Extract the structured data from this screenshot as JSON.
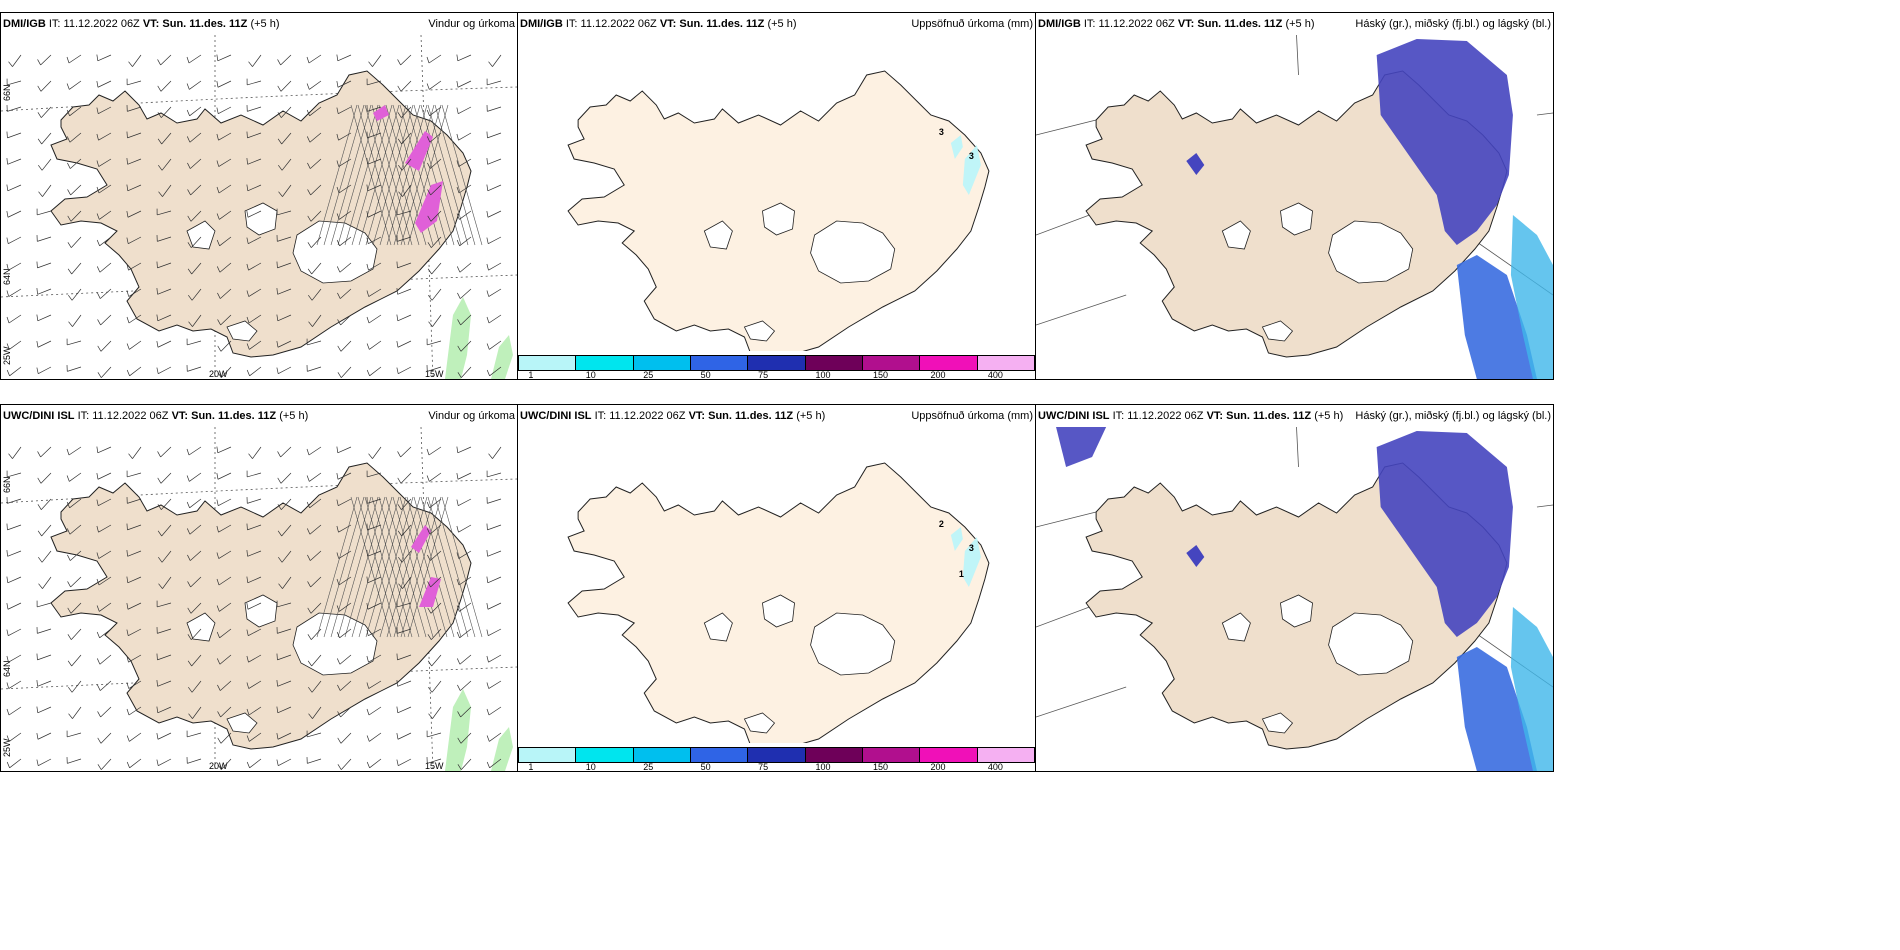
{
  "panels": [
    {
      "id": "p1",
      "model": "DMI/IGB",
      "it_label": "IT:",
      "it_value": "11.12.2022 06Z",
      "vt_label": "VT:",
      "vt_value": "Sun. 11.des. 11Z",
      "lead": "(+5 h)",
      "product": "Vindur og úrkoma",
      "type": "wind"
    },
    {
      "id": "p2",
      "model": "DMI/IGB",
      "it_label": "IT:",
      "it_value": "11.12.2022 06Z",
      "vt_label": "VT:",
      "vt_value": "Sun. 11.des. 11Z",
      "lead": "(+5 h)",
      "product": "Uppsöfnuð úrkoma (mm)",
      "type": "accum"
    },
    {
      "id": "p3",
      "model": "DMI/IGB",
      "it_label": "IT:",
      "it_value": "11.12.2022 06Z",
      "vt_label": "VT:",
      "vt_value": "Sun. 11.des. 11Z",
      "lead": "(+5 h)",
      "product": "Háský (gr.), miðský (fj.bl.) og lágský (bl.)",
      "type": "cloud"
    },
    {
      "id": "p4",
      "model": "UWC/DINI ISL",
      "it_label": "IT:",
      "it_value": "11.12.2022 06Z",
      "vt_label": "VT:",
      "vt_value": "Sun. 11.des. 11Z",
      "lead": "(+5 h)",
      "product": "Vindur og úrkoma",
      "type": "wind"
    },
    {
      "id": "p5",
      "model": "UWC/DINI ISL",
      "it_label": "IT:",
      "it_value": "11.12.2022 06Z",
      "vt_label": "VT:",
      "vt_value": "Sun. 11.des. 11Z",
      "lead": "(+5 h)",
      "product": "Uppsöfnuð úrkoma (mm)",
      "type": "accum"
    },
    {
      "id": "p6",
      "model": "UWC/DINI ISL",
      "it_label": "IT:",
      "it_value": "11.12.2022 06Z",
      "vt_label": "VT:",
      "vt_value": "Sun. 11.des. 11Z",
      "lead": "(+5 h)",
      "product": "Háský (gr.), miðský (fj.bl.) og lágský (bl.)",
      "type": "cloud"
    }
  ],
  "grid_labels": {
    "lat66": "66N",
    "lat64": "64N",
    "lon25": "25W",
    "lon20": "20W",
    "lon15": "15W"
  },
  "colorbar": {
    "colors": [
      "#b8f5f8",
      "#00e5ee",
      "#00bfee",
      "#2f64e6",
      "#1f2fb0",
      "#6e0059",
      "#b10f8e",
      "#f010b8",
      "#f5b0f2"
    ],
    "labels": [
      "1",
      "10",
      "25",
      "50",
      "75",
      "100",
      "150",
      "200",
      "400"
    ]
  },
  "accum_labels": {
    "p2": [
      "3",
      "3"
    ],
    "p5": [
      "2",
      "3",
      "1"
    ]
  },
  "colors": {
    "land": "#efdfcc",
    "land_accum": "#fdf1e2",
    "glacier": "#ffffff",
    "precip_pink": "#e060d8",
    "precip_green": "#bff0bb",
    "cloud_dark": "#4545bf",
    "cloud_mid": "#3a6de0",
    "cloud_light": "#3fb6ea"
  }
}
